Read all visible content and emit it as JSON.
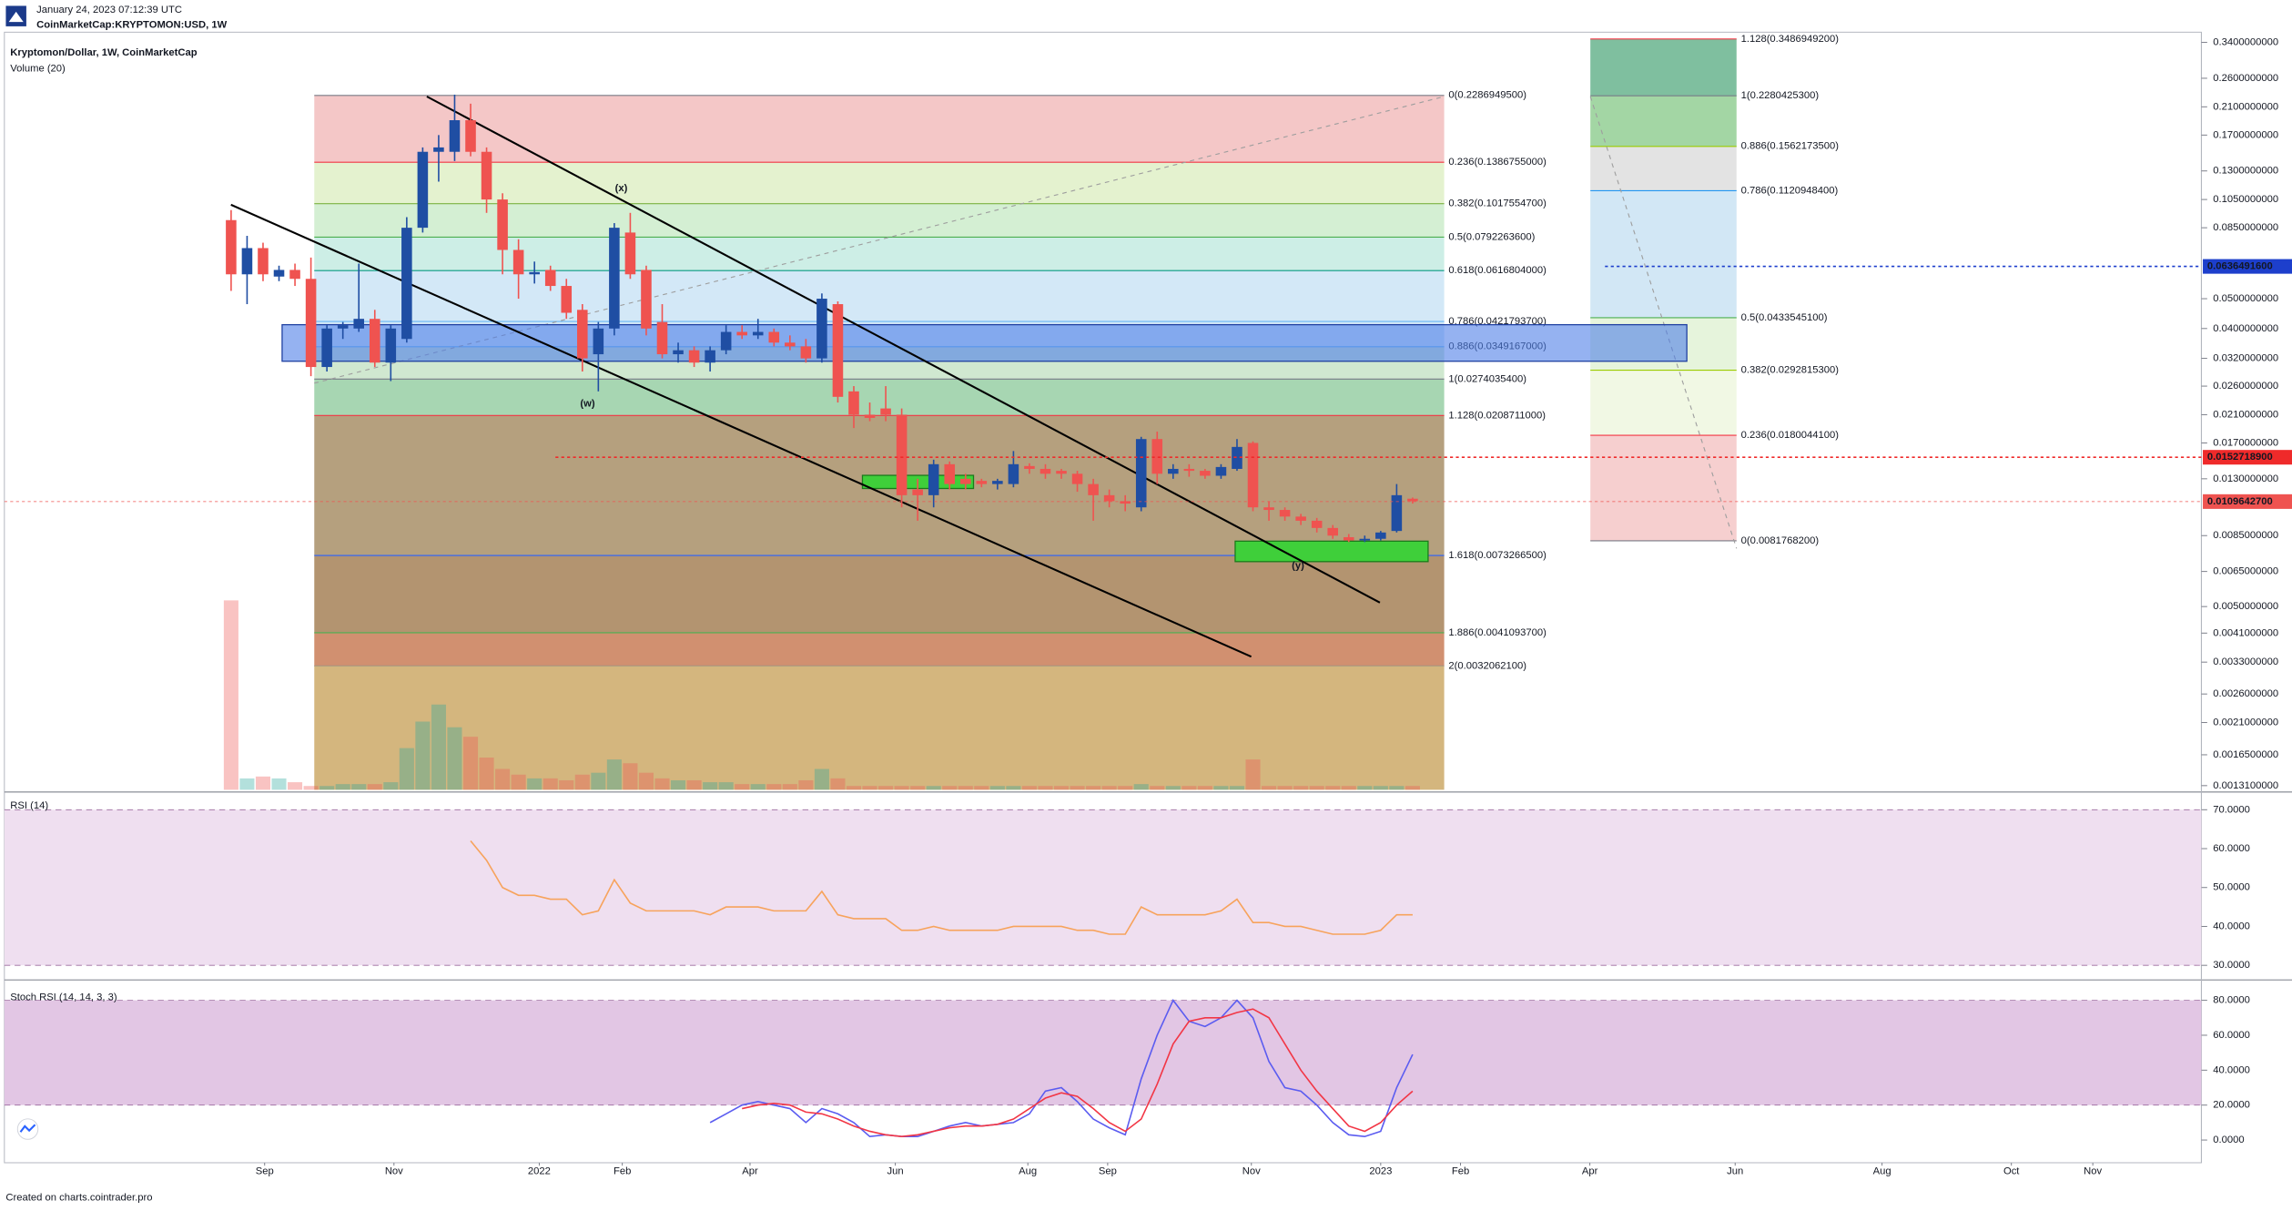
{
  "header": {
    "date": "January 24, 2023 07:12:39 UTC",
    "symbol": "CoinMarketCap:KRYPTOMON:USD, 1W"
  },
  "footer": "Created on charts.cointrader.pro",
  "chart_data": [
    {
      "type": "candlestick",
      "title": "Kryptomon/Dollar, 1W, CoinMarketCap",
      "log_scale": true,
      "up_color": "#1f4ea3",
      "down_color": "#ef5350",
      "xlim": [
        -14.2,
        123.4
      ],
      "ylim": [
        0.00127,
        0.367
      ],
      "yticks": [
        {
          "value": 0.34,
          "label": "0.3400000000"
        },
        {
          "value": 0.26,
          "label": "0.2600000000"
        },
        {
          "value": 0.21,
          "label": "0.2100000000"
        },
        {
          "value": 0.17,
          "label": "0.1700000000"
        },
        {
          "value": 0.13,
          "label": "0.1300000000"
        },
        {
          "value": 0.105,
          "label": "0.1050000000"
        },
        {
          "value": 0.085,
          "label": "0.0850000000"
        },
        {
          "value": 0.05,
          "label": "0.0500000000"
        },
        {
          "value": 0.04,
          "label": "0.0400000000"
        },
        {
          "value": 0.032,
          "label": "0.0320000000"
        },
        {
          "value": 0.026,
          "label": "0.0260000000"
        },
        {
          "value": 0.021,
          "label": "0.0210000000"
        },
        {
          "value": 0.017,
          "label": "0.0170000000"
        },
        {
          "value": 0.013,
          "label": "0.0130000000"
        },
        {
          "value": 0.0085,
          "label": "0.0085000000"
        },
        {
          "value": 0.0065,
          "label": "0.0065000000"
        },
        {
          "value": 0.005,
          "label": "0.0050000000"
        },
        {
          "value": 0.0041,
          "label": "0.0041000000"
        },
        {
          "value": 0.0033,
          "label": "0.0033000000"
        },
        {
          "value": 0.0026,
          "label": "0.0026000000"
        },
        {
          "value": 0.0021,
          "label": "0.0021000000"
        },
        {
          "value": 0.00165,
          "label": "0.0016500000"
        },
        {
          "value": 0.00131,
          "label": "0.0013100000"
        }
      ],
      "open": [
        0.09,
        0.06,
        0.073,
        0.059,
        0.062,
        0.058,
        0.03,
        0.04,
        0.04,
        0.043,
        0.031,
        0.037,
        0.085,
        0.15,
        0.15,
        0.19,
        0.15,
        0.105,
        0.072,
        0.06,
        0.062,
        0.055,
        0.046,
        0.033,
        0.04,
        0.082,
        0.062,
        0.042,
        0.033,
        0.034,
        0.031,
        0.034,
        0.039,
        0.038,
        0.039,
        0.036,
        0.035,
        0.032,
        0.048,
        0.025,
        0.021,
        0.022,
        0.021,
        0.012,
        0.0115,
        0.0145,
        0.013,
        0.0128,
        0.0125,
        0.0125,
        0.0143,
        0.014,
        0.0138,
        0.0135,
        0.0125,
        0.0115,
        0.011,
        0.0105,
        0.0175,
        0.0135,
        0.014,
        0.0138,
        0.0133,
        0.014,
        0.017,
        0.0105,
        0.0103,
        0.0098,
        0.0095,
        0.009,
        0.0084,
        0.0082,
        0.0083,
        0.0088,
        0.0112
      ],
      "high": [
        0.097,
        0.08,
        0.076,
        0.064,
        0.065,
        0.068,
        0.041,
        0.042,
        0.065,
        0.046,
        0.041,
        0.092,
        0.155,
        0.17,
        0.23,
        0.215,
        0.155,
        0.11,
        0.078,
        0.066,
        0.064,
        0.058,
        0.048,
        0.042,
        0.088,
        0.095,
        0.064,
        0.048,
        0.036,
        0.035,
        0.035,
        0.041,
        0.041,
        0.043,
        0.04,
        0.038,
        0.037,
        0.052,
        0.049,
        0.026,
        0.023,
        0.026,
        0.022,
        0.013,
        0.015,
        0.0148,
        0.0135,
        0.013,
        0.013,
        0.016,
        0.0146,
        0.0145,
        0.014,
        0.0138,
        0.013,
        0.012,
        0.0115,
        0.0178,
        0.0185,
        0.0145,
        0.0145,
        0.014,
        0.0145,
        0.0175,
        0.0172,
        0.011,
        0.0105,
        0.01,
        0.0097,
        0.0092,
        0.0086,
        0.0085,
        0.0088,
        0.0125,
        0.0113
      ],
      "low": [
        0.053,
        0.048,
        0.057,
        0.057,
        0.055,
        0.028,
        0.029,
        0.037,
        0.039,
        0.03,
        0.027,
        0.036,
        0.082,
        0.12,
        0.14,
        0.145,
        0.095,
        0.06,
        0.05,
        0.056,
        0.053,
        0.043,
        0.029,
        0.025,
        0.038,
        0.058,
        0.038,
        0.032,
        0.031,
        0.03,
        0.029,
        0.033,
        0.037,
        0.037,
        0.035,
        0.034,
        0.031,
        0.031,
        0.023,
        0.019,
        0.02,
        0.02,
        0.0105,
        0.0095,
        0.0105,
        0.012,
        0.012,
        0.0122,
        0.012,
        0.0122,
        0.0135,
        0.013,
        0.013,
        0.0118,
        0.0095,
        0.0105,
        0.0102,
        0.0102,
        0.0125,
        0.013,
        0.0132,
        0.013,
        0.013,
        0.0138,
        0.0102,
        0.0095,
        0.0095,
        0.0092,
        0.0087,
        0.0083,
        0.0081,
        0.0081,
        0.0082,
        0.0087,
        0.0108
      ],
      "close": [
        0.06,
        0.073,
        0.06,
        0.062,
        0.058,
        0.03,
        0.04,
        0.041,
        0.043,
        0.031,
        0.04,
        0.085,
        0.15,
        0.155,
        0.19,
        0.15,
        0.105,
        0.072,
        0.06,
        0.061,
        0.055,
        0.045,
        0.032,
        0.04,
        0.085,
        0.06,
        0.04,
        0.033,
        0.034,
        0.031,
        0.034,
        0.039,
        0.038,
        0.039,
        0.036,
        0.035,
        0.032,
        0.05,
        0.024,
        0.021,
        0.0205,
        0.021,
        0.0115,
        0.0115,
        0.0145,
        0.0125,
        0.0125,
        0.0125,
        0.0128,
        0.0145,
        0.014,
        0.0135,
        0.0135,
        0.0125,
        0.0115,
        0.011,
        0.0108,
        0.0175,
        0.0135,
        0.014,
        0.0138,
        0.0133,
        0.0142,
        0.0165,
        0.0105,
        0.0103,
        0.0098,
        0.0095,
        0.009,
        0.0085,
        0.0082,
        0.0083,
        0.0087,
        0.0115,
        0.011
      ],
      "volume": {
        "name": "Volume (20)",
        "up_color": "#26a69a",
        "down_color": "#ef5350",
        "values": [
          100,
          6,
          7,
          6,
          4,
          2,
          2,
          3,
          3,
          3,
          4,
          22,
          36,
          45,
          33,
          28,
          17,
          11,
          8,
          6,
          6,
          5,
          8,
          9,
          16,
          14,
          9,
          6,
          5,
          5,
          4,
          4,
          3,
          3,
          3,
          3,
          5,
          11,
          6,
          2,
          2,
          2,
          2,
          2,
          2,
          2,
          2,
          2,
          2,
          2,
          2,
          2,
          2,
          2,
          2,
          2,
          2,
          3,
          2,
          2,
          2,
          2,
          2,
          2,
          16,
          2,
          2,
          2,
          2,
          2,
          2,
          2,
          2,
          2,
          2
        ]
      },
      "annotations": [
        "(w)",
        "(x)",
        "(y)"
      ],
      "fib_left": [
        {
          "label": "0(0.2286949500)",
          "price": 0.22869495,
          "color": "#787b86",
          "fill": "#f4c7c7"
        },
        {
          "label": "0.236(0.1386755000)",
          "price": 0.1386755,
          "color": "#f23645",
          "fill": "#f4c7c7"
        },
        {
          "label": "0.382(0.1017554700)",
          "price": 0.10175547,
          "color": "#7cb342",
          "fill": "#e4f2cf"
        },
        {
          "label": "0.5(0.0792263600)",
          "price": 0.07922636,
          "color": "#4caf50",
          "fill": "#d4efd3"
        },
        {
          "label": "0.618(0.0616804000)",
          "price": 0.0616804,
          "color": "#089981",
          "fill": "#cdeee6"
        },
        {
          "label": "0.786(0.0421793700)",
          "price": 0.04217937,
          "color": "#64b5f6",
          "fill": "#d3e8f7"
        },
        {
          "label": "0.886(0.0349167000)",
          "price": 0.0349167,
          "color": "#64b5f6",
          "fill": "#d3e8f7"
        },
        {
          "label": "1(0.0274035400)",
          "price": 0.02740354,
          "color": "#787b86",
          "fill": "#d0e8d0"
        },
        {
          "label": "1.128(0.0208711000)",
          "price": 0.0208711,
          "color": "#f23645",
          "fill": "#a7d6b2"
        },
        {
          "label": "1.618(0.0073266500)",
          "price": 0.00732665,
          "color": "#2962ff",
          "fill": "#b5a07e"
        },
        {
          "label": "1.886(0.0041093700)",
          "price": 0.00410937,
          "color": "#4caf50",
          "fill": "#b39470"
        },
        {
          "label": "2(0.0032062100)",
          "price": 0.00320621,
          "color": "#787b86",
          "fill": "#d19070"
        }
      ],
      "fib_right": [
        {
          "label": "1.128(0.3486949200)",
          "price": 0.34869492,
          "color": "#f23645",
          "fill": "#7fbf9f"
        },
        {
          "label": "1(0.2280425300)",
          "price": 0.22804253,
          "color": "#787b86",
          "fill": "#7fbf9f"
        },
        {
          "label": "0.886(0.1562173500)",
          "price": 0.15621735,
          "color": "#9ccc00",
          "fill": "#a3d6a4"
        },
        {
          "label": "0.786(0.1120948400)",
          "price": 0.11209484,
          "color": "#2196f3",
          "fill": "#e3e3e3"
        },
        {
          "label": "0.5(0.0433545100)",
          "price": 0.04335451,
          "color": "#4caf50",
          "fill": "#d2e7f5"
        },
        {
          "label": "0.382(0.0292815300)",
          "price": 0.02928153,
          "color": "#9ccc00",
          "fill": "#e6f4dc"
        },
        {
          "label": "0.236(0.0180044100)",
          "price": 0.01800441,
          "color": "#f23645",
          "fill": "#f1f8e4"
        },
        {
          "label": "0(0.0081768200)",
          "price": 0.00817682,
          "color": "#787b86",
          "fill": "#f6cfcf"
        }
      ],
      "markers": [
        {
          "value": 0.06364916,
          "label": "0.0636491600",
          "color": "#1d3fcc"
        },
        {
          "value": 0.01527189,
          "label": "0.0152718900",
          "color": "#ef2a2a"
        },
        {
          "value": 0.01096427,
          "label": "0.0109642700",
          "color": "#ef5350"
        }
      ]
    },
    {
      "type": "line",
      "title": "RSI (14)",
      "color": "#f7a35c",
      "band": [
        30,
        70
      ],
      "band_color": "#efdff0",
      "xlim": [
        -14.2,
        123.4
      ],
      "ylim": [
        27,
        74
      ],
      "yticks": [
        {
          "value": 70,
          "label": "70.0000"
        },
        {
          "value": 60,
          "label": "60.0000"
        },
        {
          "value": 50,
          "label": "50.0000"
        },
        {
          "value": 40,
          "label": "40.0000"
        },
        {
          "value": 30,
          "label": "30.0000"
        }
      ],
      "values": [
        null,
        null,
        null,
        null,
        null,
        null,
        null,
        null,
        null,
        null,
        null,
        null,
        null,
        null,
        null,
        62,
        57,
        50,
        48,
        48,
        47,
        47,
        43,
        44,
        52,
        46,
        44,
        44,
        44,
        44,
        43,
        45,
        45,
        45,
        44,
        44,
        44,
        49,
        43,
        42,
        42,
        42,
        39,
        39,
        40,
        39,
        39,
        39,
        39,
        40,
        40,
        40,
        40,
        39,
        39,
        38,
        38,
        45,
        43,
        43,
        43,
        43,
        44,
        47,
        41,
        41,
        40,
        40,
        39,
        38,
        38,
        38,
        39,
        43,
        43
      ]
    },
    {
      "type": "line",
      "title": "Stoch RSI (14, 14, 3, 3)",
      "band": [
        20,
        80
      ],
      "band_color": "#e2c6e4",
      "xlim": [
        -14.2,
        123.4
      ],
      "ylim": [
        -13,
        90
      ],
      "yticks": [
        {
          "value": 80,
          "label": "80.0000"
        },
        {
          "value": 60,
          "label": "60.0000"
        },
        {
          "value": 40,
          "label": "40.0000"
        },
        {
          "value": 20,
          "label": "20.0000"
        },
        {
          "value": 0,
          "label": "0.0000"
        }
      ],
      "xticks": [
        {
          "value": 2.1,
          "label": "Sep"
        },
        {
          "value": 10.2,
          "label": "Nov"
        },
        {
          "value": 19.3,
          "label": "2022"
        },
        {
          "value": 24.5,
          "label": "Feb"
        },
        {
          "value": 32.5,
          "label": "Apr"
        },
        {
          "value": 41.6,
          "label": "Jun"
        },
        {
          "value": 49.9,
          "label": "Aug"
        },
        {
          "value": 54.9,
          "label": "Sep"
        },
        {
          "value": 63.9,
          "label": "Nov"
        },
        {
          "value": 72.0,
          "label": "2023"
        },
        {
          "value": 77.0,
          "label": "Feb"
        },
        {
          "value": 85.1,
          "label": "Apr"
        },
        {
          "value": 94.2,
          "label": "Jun"
        },
        {
          "value": 103.4,
          "label": "Aug"
        },
        {
          "value": 111.5,
          "label": "Oct"
        },
        {
          "value": 116.6,
          "label": "Nov"
        }
      ],
      "series": [
        {
          "color": "#5b5cf0",
          "values": [
            null,
            null,
            null,
            null,
            null,
            null,
            null,
            null,
            null,
            null,
            null,
            null,
            null,
            null,
            null,
            null,
            null,
            null,
            null,
            null,
            null,
            null,
            null,
            null,
            null,
            null,
            null,
            null,
            null,
            null,
            10,
            15,
            20,
            22,
            20,
            18,
            10,
            18,
            15,
            10,
            2,
            3,
            2,
            2,
            5,
            8,
            10,
            8,
            9,
            10,
            15,
            28,
            30,
            22,
            12,
            7,
            3,
            35,
            60,
            80,
            68,
            65,
            70,
            80,
            70,
            45,
            30,
            28,
            20,
            10,
            3,
            2,
            5,
            30,
            49
          ]
        },
        {
          "color": "#f23645",
          "values": [
            null,
            null,
            null,
            null,
            null,
            null,
            null,
            null,
            null,
            null,
            null,
            null,
            null,
            null,
            null,
            null,
            null,
            null,
            null,
            null,
            null,
            null,
            null,
            null,
            null,
            null,
            null,
            null,
            null,
            null,
            null,
            null,
            18,
            20,
            21,
            20,
            16,
            15,
            12,
            8,
            5,
            3,
            2,
            3,
            5,
            7,
            8,
            8,
            9,
            12,
            18,
            24,
            27,
            25,
            18,
            10,
            5,
            12,
            32,
            55,
            68,
            70,
            70,
            73,
            75,
            70,
            55,
            40,
            28,
            18,
            8,
            5,
            10,
            20,
            28
          ]
        }
      ]
    }
  ]
}
